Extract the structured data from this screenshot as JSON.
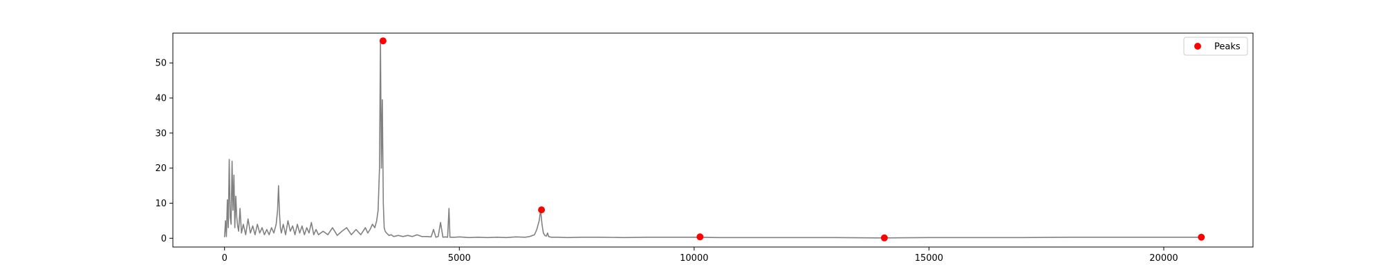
{
  "chart_data": {
    "type": "line",
    "title": "",
    "xlabel": "",
    "ylabel": "",
    "xlim": [
      -1100,
      21900
    ],
    "ylim": [
      -2.5,
      58.5
    ],
    "x_ticks": [
      0,
      5000,
      10000,
      15000,
      20000
    ],
    "y_ticks": [
      0,
      10,
      20,
      30,
      40,
      50
    ],
    "x_tick_labels": [
      "0",
      "5000",
      "10000",
      "15000",
      "20000"
    ],
    "y_tick_labels": [
      "0",
      "10",
      "20",
      "30",
      "40",
      "50"
    ],
    "grid": false,
    "legend": {
      "placement": "top-right",
      "entries": [
        "Peaks"
      ]
    },
    "colors": {
      "signal": "#808080",
      "peaks": "#ff0000"
    },
    "series": [
      {
        "kind": "line",
        "x": [
          0,
          20,
          40,
          60,
          80,
          100,
          120,
          140,
          160,
          180,
          200,
          220,
          240,
          260,
          280,
          300,
          330,
          360,
          400,
          450,
          500,
          550,
          600,
          650,
          700,
          750,
          800,
          850,
          900,
          950,
          1000,
          1050,
          1100,
          1130,
          1150,
          1170,
          1190,
          1210,
          1250,
          1300,
          1350,
          1400,
          1450,
          1500,
          1550,
          1600,
          1650,
          1700,
          1750,
          1800,
          1850,
          1900,
          1950,
          2000,
          2100,
          2200,
          2300,
          2400,
          2500,
          2600,
          2700,
          2800,
          2900,
          3000,
          3050,
          3100,
          3150,
          3200,
          3240,
          3270,
          3300,
          3320,
          3340,
          3360,
          3380,
          3400,
          3420,
          3450,
          3500,
          3550,
          3600,
          3700,
          3800,
          3900,
          4000,
          4100,
          4200,
          4300,
          4400,
          4450,
          4500,
          4550,
          4600,
          4650,
          4700,
          4750,
          4780,
          4800,
          4850,
          4900,
          5000,
          5200,
          5400,
          5600,
          5800,
          6000,
          6200,
          6400,
          6500,
          6600,
          6650,
          6700,
          6730,
          6760,
          6790,
          6820,
          6850,
          6880,
          6900,
          6930,
          6960,
          7000,
          7100,
          7300,
          7600,
          8000,
          8500,
          9000,
          9500,
          10000,
          10500,
          11000,
          12000,
          13000,
          14000,
          15000,
          16000,
          17000,
          18000,
          19000,
          20000,
          20500,
          20800
        ],
        "y": [
          0.3,
          5.0,
          0.5,
          11.0,
          3.0,
          22.5,
          6.0,
          4.0,
          22.0,
          8.0,
          18.0,
          3.0,
          12.0,
          6.0,
          3.5,
          2.0,
          8.5,
          1.5,
          4.0,
          1.0,
          5.5,
          1.5,
          3.5,
          1.0,
          4.0,
          1.5,
          3.0,
          1.0,
          2.5,
          1.0,
          3.0,
          1.5,
          4.0,
          8.0,
          15.0,
          7.0,
          3.0,
          1.5,
          4.0,
          1.0,
          5.0,
          2.0,
          3.5,
          1.0,
          4.0,
          1.5,
          3.5,
          1.0,
          3.0,
          1.5,
          4.5,
          1.0,
          2.5,
          1.0,
          2.0,
          1.0,
          3.0,
          0.8,
          2.0,
          3.0,
          1.0,
          2.5,
          1.0,
          3.0,
          1.5,
          2.5,
          4.0,
          3.0,
          5.0,
          8.0,
          20.0,
          56.5,
          20.0,
          39.5,
          10.0,
          3.0,
          2.0,
          1.5,
          0.8,
          1.0,
          0.5,
          0.8,
          0.5,
          0.8,
          0.5,
          1.0,
          0.5,
          0.5,
          0.4,
          2.5,
          0.3,
          0.5,
          4.5,
          0.3,
          0.4,
          0.3,
          8.5,
          0.3,
          0.3,
          0.3,
          0.4,
          0.2,
          0.3,
          0.2,
          0.3,
          0.2,
          0.4,
          0.3,
          0.5,
          1.0,
          2.5,
          5.0,
          8.0,
          4.0,
          1.5,
          0.8,
          0.6,
          1.5,
          0.5,
          0.4,
          0.3,
          0.3,
          0.3,
          0.2,
          0.3,
          0.3,
          0.2,
          0.3,
          0.3,
          0.3,
          0.2,
          0.2,
          0.2,
          0.2,
          0.1,
          0.2,
          0.2,
          0.2,
          0.3,
          0.3,
          0.3,
          0.3,
          0.3
        ]
      },
      {
        "kind": "scatter",
        "name": "Peaks",
        "x": [
          3375,
          6750,
          10125,
          14050,
          20800
        ],
        "y": [
          56.3,
          8.1,
          0.4,
          0.1,
          0.3
        ]
      }
    ]
  }
}
